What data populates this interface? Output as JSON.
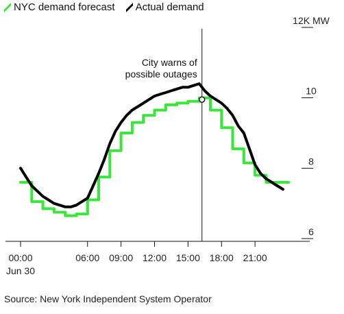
{
  "legend": [
    {
      "label": "NYC demand forecast",
      "color": "#39e639"
    },
    {
      "label": "Actual demand",
      "color": "#000000"
    }
  ],
  "source": "Source: New York Independent System Operator",
  "chart_data": {
    "type": "line",
    "x_unit": "hour",
    "xlim": [
      0,
      24
    ],
    "ylim": [
      6,
      12
    ],
    "y_ticks": [
      {
        "value": 12,
        "label": "12K MW"
      },
      {
        "value": 10,
        "label": "10"
      },
      {
        "value": 8,
        "label": "8"
      },
      {
        "value": 6,
        "label": "6"
      }
    ],
    "x_ticks": [
      {
        "value": 0,
        "label": "00:00",
        "sublabel": "Jun 30"
      },
      {
        "value": 6,
        "label": "06:00"
      },
      {
        "value": 9,
        "label": "09:00"
      },
      {
        "value": 12,
        "label": "12:00"
      },
      {
        "value": 15,
        "label": "15:00"
      },
      {
        "value": 18,
        "label": "18:00"
      },
      {
        "value": 21,
        "label": "21:00"
      }
    ],
    "annotation": {
      "x": 16.25,
      "lines": [
        "City warns of",
        "possible outages"
      ],
      "marker_value": 9.95
    },
    "series": [
      {
        "name": "NYC demand forecast",
        "color": "#39e639",
        "step": true,
        "x": [
          0,
          1,
          2,
          3,
          4,
          5,
          6,
          7,
          8,
          9,
          10,
          11,
          12,
          13,
          14,
          15,
          16,
          17,
          18,
          19,
          20,
          21,
          22,
          23,
          24
        ],
        "y": [
          7.6,
          7.05,
          6.85,
          6.75,
          6.65,
          6.7,
          7.1,
          7.75,
          8.5,
          9.0,
          9.3,
          9.5,
          9.65,
          9.8,
          9.85,
          9.9,
          10.0,
          9.65,
          9.15,
          8.55,
          8.15,
          7.8,
          7.6,
          7.6,
          7.6
        ]
      },
      {
        "name": "Actual demand",
        "color": "#000000",
        "step": false,
        "x": [
          0,
          0.5,
          1,
          1.5,
          2,
          2.5,
          3,
          3.5,
          4,
          4.5,
          5,
          5.5,
          6,
          6.5,
          7,
          7.5,
          8,
          8.5,
          9,
          9.5,
          10,
          10.5,
          11,
          11.5,
          12,
          12.5,
          13,
          13.5,
          14,
          14.5,
          15,
          15.5,
          16,
          16.5,
          17,
          17.5,
          18,
          18.5,
          19,
          19.5,
          20,
          20.5,
          21,
          21.5,
          22,
          22.5,
          23,
          23.5
        ],
        "y": [
          8.0,
          7.75,
          7.5,
          7.35,
          7.2,
          7.1,
          7.0,
          6.95,
          6.9,
          6.9,
          6.95,
          7.05,
          7.15,
          7.5,
          7.85,
          8.25,
          8.7,
          9.05,
          9.3,
          9.5,
          9.65,
          9.75,
          9.85,
          9.95,
          10.05,
          10.1,
          10.15,
          10.2,
          10.25,
          10.3,
          10.3,
          10.35,
          10.4,
          10.2,
          10.05,
          9.95,
          9.85,
          9.7,
          9.5,
          9.2,
          9.0,
          8.55,
          8.1,
          7.85,
          7.7,
          7.6,
          7.5,
          7.4
        ]
      }
    ]
  }
}
